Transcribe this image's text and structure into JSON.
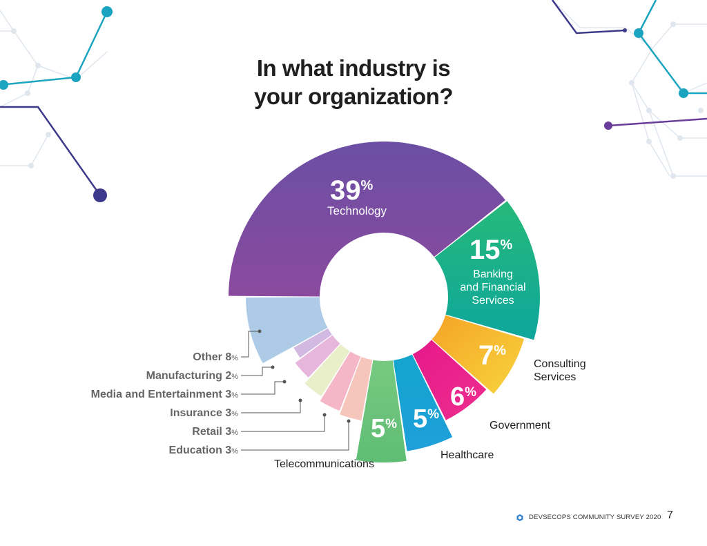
{
  "title": {
    "line1": "In what industry is",
    "line2": "your organization?"
  },
  "chart_data": {
    "type": "donut",
    "title": "In what industry is your organization?",
    "unit": "%",
    "slices": [
      {
        "label": "Technology",
        "value": 39,
        "color": "#7a4fa8"
      },
      {
        "label": "Banking and Financial Services",
        "value": 15,
        "color": "#19ae8c"
      },
      {
        "label": "Consulting Services",
        "value": 7,
        "color": "#f5b92e"
      },
      {
        "label": "Government",
        "value": 6,
        "color": "#ea2a8c"
      },
      {
        "label": "Healthcare",
        "value": 5,
        "color": "#1aa3d3"
      },
      {
        "label": "Telecommunications",
        "value": 5,
        "color": "#6fc57c"
      },
      {
        "label": "Education",
        "value": 3,
        "color": "#f6c5bb"
      },
      {
        "label": "Retail",
        "value": 3,
        "color": "#f5b7c7"
      },
      {
        "label": "Insurance",
        "value": 3,
        "color": "#e9efc9"
      },
      {
        "label": "Media and Entertainment",
        "value": 3,
        "color": "#e7b6dc"
      },
      {
        "label": "Manufacturing",
        "value": 2,
        "color": "#d2b9e2"
      },
      {
        "label": "Other",
        "value": 8,
        "color": "#adcbe7"
      }
    ]
  },
  "callouts": {
    "technology": {
      "value": "39",
      "pct": "%",
      "label": "Technology"
    },
    "banking": {
      "value": "15",
      "pct": "%",
      "line1": "Banking",
      "line2": "and Financial",
      "line3": "Services"
    },
    "consulting": {
      "value": "7",
      "pct": "%",
      "line1": "Consulting",
      "line2": "Services"
    },
    "government": {
      "value": "6",
      "pct": "%",
      "label": "Government"
    },
    "healthcare": {
      "value": "5",
      "pct": "%",
      "label": "Healthcare"
    },
    "telecom": {
      "value": "5",
      "pct": "%",
      "label": "Telecommunications"
    },
    "other": {
      "label": "Other 8",
      "pct": "%"
    },
    "manufacturing": {
      "label": "Manufacturing 2",
      "pct": "%"
    },
    "media": {
      "label": "Media and Entertainment 3",
      "pct": "%"
    },
    "insurance": {
      "label": "Insurance 3",
      "pct": "%"
    },
    "retail": {
      "label": "Retail 3",
      "pct": "%"
    },
    "education": {
      "label": "Education 3",
      "pct": "%"
    }
  },
  "footer": {
    "survey": "DEVSECOPS COMMUNITY SURVEY 2020",
    "page": "7"
  },
  "colors": {
    "teal": "#1ba4bf",
    "navy": "#3d3a8c",
    "purple": "#6a3d9a",
    "grid": "#dfe6ee"
  }
}
